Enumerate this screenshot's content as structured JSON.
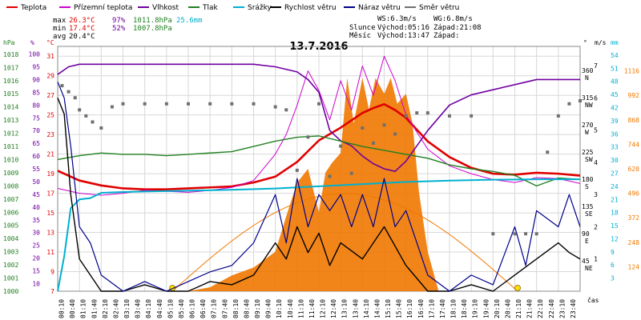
{
  "chart_data": {
    "type": "line",
    "title": "13.7.2016",
    "legend": [
      {
        "label": "Teplota",
        "color": "#e00000"
      },
      {
        "label": "Přízemní teplota",
        "color": "#d000d0"
      },
      {
        "label": "Vlhkost",
        "color": "#7000a0"
      },
      {
        "label": "Tlak",
        "color": "#208020"
      },
      {
        "label": "Srážky",
        "color": "#00b0d0"
      },
      {
        "label": "Rychlost větru",
        "color": "#000000"
      },
      {
        "label": "Náraz větru",
        "color": "#00008b"
      },
      {
        "label": "Směr větru",
        "color": "#707070"
      }
    ],
    "stats": {
      "max": {
        "label": "max",
        "temp": "26.3°C",
        "hum": "97%",
        "press": "1011.8hPa",
        "rain": "25.6mm"
      },
      "min": {
        "label": "min",
        "temp": "17.4°C",
        "hum": "52%",
        "press": "1007.8hPa"
      },
      "avg": {
        "label": "avg",
        "temp": "20.4°C"
      }
    },
    "wind_stats": {
      "ws": "WS:6.3m/s",
      "wg": "WG:6.8m/s"
    },
    "sun": {
      "label": "Slunce",
      "rise": "Východ:05:16",
      "set": "Západ:21:08"
    },
    "moon": {
      "label": "Měsíc",
      "rise": "Východ:13:47",
      "set": "Západ:"
    },
    "axes": {
      "hpa": {
        "unit": "hPa",
        "ticks": [
          1018,
          1017,
          1016,
          1015,
          1014,
          1013,
          1012,
          1011,
          1010,
          1009,
          1008,
          1007,
          1006,
          1005,
          1004,
          1003,
          1002,
          1001,
          1000
        ]
      },
      "pct": {
        "unit": "%",
        "ticks": [
          100,
          95,
          90,
          85,
          80,
          75,
          70,
          65,
          60,
          55,
          50,
          45,
          40,
          35,
          30,
          25,
          20,
          15,
          10
        ]
      },
      "temp": {
        "unit": "°C",
        "ticks": [
          31,
          29,
          27,
          25,
          23,
          21,
          19,
          17,
          15,
          13,
          11,
          9,
          7
        ],
        "range": [
          7,
          32
        ]
      },
      "dir": {
        "unit": "°",
        "ticks": [
          {
            "v": "360",
            "s": "N"
          },
          {
            "v": "315",
            "s": "NW"
          },
          {
            "v": "270",
            "s": "W"
          },
          {
            "v": "225",
            "s": "SW"
          },
          {
            "v": "180",
            "s": "S"
          },
          {
            "v": "135",
            "s": "SE"
          },
          {
            "v": "90",
            "s": "E"
          },
          {
            "v": "45",
            "s": "NE"
          }
        ]
      },
      "ms": {
        "unit": "m/s",
        "ticks": [
          7,
          6,
          5,
          4,
          3,
          2,
          1
        ]
      },
      "mm": {
        "unit": "mm",
        "ticks": [
          54,
          51,
          48,
          45,
          42,
          39,
          36,
          33,
          30,
          27,
          24,
          21,
          18,
          15,
          12,
          9,
          6,
          3
        ]
      },
      "wm2": {
        "ticks": [
          1116,
          992,
          868,
          744,
          620,
          496,
          372,
          248,
          124
        ]
      },
      "x_label": "čas",
      "x_ticks": [
        "00:10",
        "00:40",
        "01:10",
        "01:40",
        "02:10",
        "02:40",
        "03:10",
        "03:40",
        "04:10",
        "04:40",
        "05:10",
        "05:40",
        "06:10",
        "06:40",
        "07:10",
        "07:40",
        "08:10",
        "08:40",
        "09:10",
        "09:40",
        "10:10",
        "10:40",
        "11:10",
        "11:40",
        "12:10",
        "12:40",
        "13:10",
        "13:40",
        "14:10",
        "14:40",
        "15:10",
        "15:40",
        "16:10",
        "16:40",
        "17:10",
        "17:40",
        "18:10",
        "18:40",
        "19:10",
        "19:40",
        "20:10",
        "20:40",
        "21:10",
        "21:40",
        "22:10",
        "22:40",
        "23:10",
        "23:40"
      ]
    },
    "series": [
      {
        "name": "Teplota",
        "unit": "°C",
        "color": "#e00000",
        "x": [
          0,
          1,
          2,
          3,
          4,
          5,
          6,
          7,
          8,
          9,
          10,
          11,
          12,
          13,
          14,
          14.5,
          15,
          15.5,
          16,
          17,
          18,
          19,
          20,
          21,
          22,
          23,
          24
        ],
        "y": [
          19.3,
          18.3,
          17.8,
          17.5,
          17.4,
          17.4,
          17.5,
          17.6,
          17.7,
          18.1,
          18.7,
          20.2,
          22.4,
          23.7,
          25.2,
          25.7,
          26.1,
          25.5,
          24.7,
          22.3,
          20.7,
          19.6,
          19.0,
          18.9,
          19.1,
          19.0,
          18.8
        ]
      },
      {
        "name": "Přízemní teplota",
        "unit": "°C",
        "color": "#d000d0",
        "x": [
          0,
          1,
          2,
          3,
          4,
          5,
          6,
          7,
          8,
          9,
          10,
          10.5,
          11,
          11.5,
          12,
          12.5,
          13,
          13.5,
          14,
          14.5,
          15,
          15.5,
          16,
          17,
          18,
          19,
          20,
          21,
          22,
          23,
          24
        ],
        "y": [
          17.5,
          17.0,
          16.8,
          17.0,
          17.3,
          17.2,
          17.1,
          17.3,
          17.6,
          18.3,
          21.0,
          23.0,
          26.0,
          29.5,
          27.5,
          24.5,
          28.5,
          25.5,
          30.0,
          27.0,
          31.0,
          28.5,
          25.0,
          21.5,
          19.8,
          19.0,
          18.4,
          18.1,
          18.6,
          18.5,
          18.0
        ]
      },
      {
        "name": "Vlhkost",
        "unit": "%",
        "color": "#7000a0",
        "x": [
          0,
          0.5,
          1,
          2,
          3,
          4,
          5,
          6,
          7,
          8,
          9,
          10,
          11,
          11.5,
          12,
          12.5,
          13,
          13.5,
          14,
          14.5,
          15,
          15.5,
          16,
          16.5,
          17,
          18,
          19,
          20,
          21,
          22,
          23,
          24
        ],
        "y": [
          92,
          95,
          96,
          96,
          96,
          96,
          96,
          96,
          96,
          96,
          96,
          95,
          93,
          90,
          85,
          70,
          66,
          64,
          60,
          57,
          55,
          54,
          58,
          64,
          70,
          80,
          84,
          86,
          88,
          90,
          90,
          90
        ]
      },
      {
        "name": "Tlak",
        "unit": "hPa",
        "color": "#208020",
        "x": [
          0,
          1,
          2,
          3,
          4,
          5,
          6,
          7,
          8,
          9,
          10,
          11,
          12,
          13,
          14,
          15,
          16,
          17,
          18,
          19,
          20,
          21,
          22,
          23,
          24
        ],
        "y": [
          1010.0,
          1010.3,
          1010.5,
          1010.4,
          1010.4,
          1010.3,
          1010.4,
          1010.5,
          1010.6,
          1011.0,
          1011.4,
          1011.7,
          1011.8,
          1011.4,
          1011.0,
          1010.7,
          1010.4,
          1010.1,
          1009.6,
          1009.3,
          1009.1,
          1008.8,
          1008.0,
          1008.6,
          1008.5
        ]
      },
      {
        "name": "Srážky",
        "unit": "mm",
        "color": "#00b0d0",
        "x": [
          0,
          0.3,
          0.6,
          1,
          1.5,
          2,
          3,
          4,
          6,
          8,
          10,
          12,
          14,
          16,
          18,
          20,
          22,
          24
        ],
        "y": [
          0.0,
          8.0,
          19.0,
          21.0,
          21.3,
          22.5,
          22.7,
          22.8,
          23.0,
          23.2,
          23.5,
          24.0,
          24.5,
          25.0,
          25.3,
          25.5,
          25.6,
          25.6
        ]
      },
      {
        "name": "Rychlost větru",
        "unit": "m/s",
        "color": "#000000",
        "x": [
          0,
          0.3,
          0.6,
          1,
          1.5,
          2,
          3,
          4,
          5,
          6,
          7,
          8,
          9,
          10,
          10.5,
          11,
          11.5,
          12,
          12.5,
          13,
          14,
          15,
          16,
          17,
          18,
          19,
          20,
          21,
          22,
          23,
          23.5,
          24
        ],
        "y": [
          6.0,
          5.5,
          3.0,
          1.0,
          0.5,
          0.0,
          0.0,
          0.2,
          0.0,
          0.0,
          0.3,
          0.2,
          0.5,
          1.5,
          1.0,
          2.0,
          1.2,
          1.8,
          0.8,
          1.5,
          1.0,
          2.0,
          0.8,
          0.0,
          0.0,
          0.2,
          0.0,
          0.5,
          1.0,
          1.5,
          1.2,
          1.0
        ]
      },
      {
        "name": "Náraz větru",
        "unit": "m/s",
        "color": "#00008b",
        "x": [
          0,
          0.3,
          0.6,
          1,
          1.5,
          2,
          3,
          4,
          5,
          6,
          7,
          8,
          9,
          10,
          10.5,
          11,
          11.5,
          12,
          12.5,
          13,
          13.5,
          14,
          14.5,
          15,
          15.5,
          16,
          17,
          18,
          19,
          20,
          21,
          21.5,
          22,
          23,
          23.5,
          24
        ],
        "y": [
          6.5,
          6.0,
          4.5,
          2.0,
          1.5,
          0.5,
          0.0,
          0.3,
          0.0,
          0.3,
          0.6,
          0.8,
          1.5,
          3.0,
          1.5,
          3.5,
          2.0,
          3.0,
          2.5,
          3.0,
          2.0,
          3.0,
          2.0,
          3.5,
          2.0,
          2.5,
          0.5,
          0.0,
          0.5,
          0.2,
          2.0,
          0.8,
          2.5,
          2.0,
          3.0,
          2.0
        ]
      },
      {
        "name": "Směr větru",
        "unit": "°",
        "color": "#707070",
        "mode": "points",
        "x": [
          0.2,
          0.5,
          0.8,
          1,
          1.3,
          1.6,
          2,
          2.5,
          3,
          4,
          5,
          6,
          7,
          8,
          9,
          10,
          10.5,
          11,
          11.5,
          12,
          12.5,
          13,
          13.5,
          14,
          14.5,
          15,
          15.5,
          16,
          16.5,
          17,
          18,
          19,
          20,
          21,
          21.5,
          22,
          22.5,
          23,
          23.5,
          24
        ],
        "y": [
          340,
          330,
          320,
          300,
          290,
          280,
          270,
          305,
          310,
          310,
          310,
          310,
          310,
          310,
          310,
          305,
          300,
          200,
          255,
          310,
          190,
          240,
          195,
          270,
          245,
          275,
          260,
          290,
          295,
          295,
          290,
          290,
          95,
          95,
          95,
          95,
          230,
          290,
          310,
          315
        ]
      },
      {
        "name": "Sluneční záření",
        "unit": "W/m²",
        "color": "#f07800",
        "mode": "area",
        "x": [
          6,
          7,
          8,
          9,
          10,
          10.5,
          11,
          11.5,
          12,
          12.3,
          12.6,
          13,
          13.3,
          13.6,
          14,
          14.3,
          14.6,
          15,
          15.3,
          15.6,
          16,
          16.3,
          16.6,
          17,
          17.5
        ],
        "y": [
          0,
          20,
          80,
          120,
          200,
          380,
          550,
          620,
          400,
          600,
          650,
          700,
          1080,
          850,
          1080,
          920,
          1080,
          1000,
          1080,
          950,
          1000,
          850,
          500,
          200,
          0
        ]
      }
    ]
  }
}
